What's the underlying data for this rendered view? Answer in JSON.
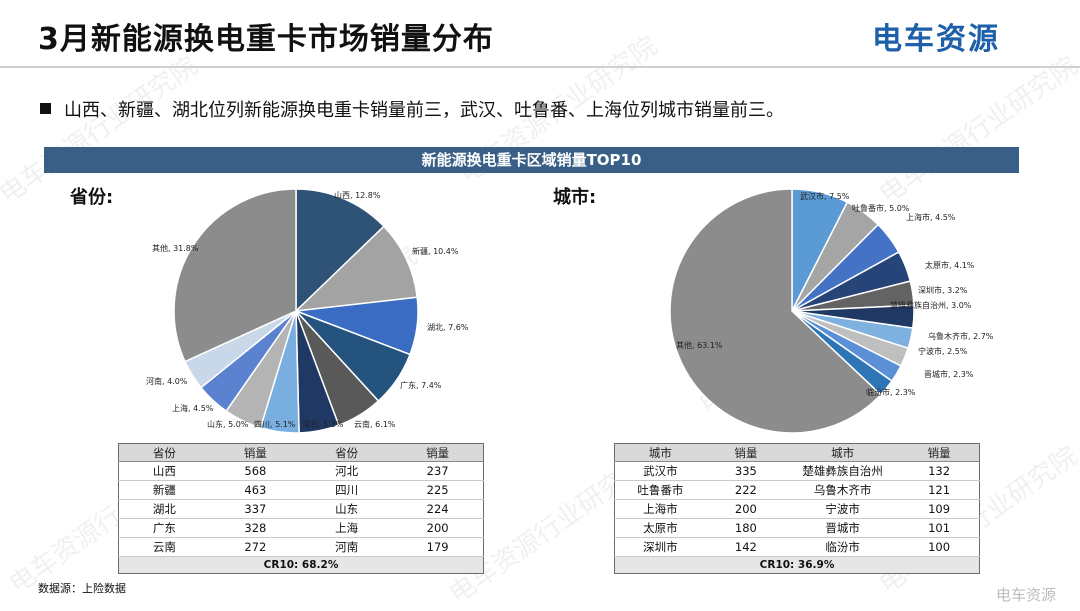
{
  "header": {
    "title": "3月新能源换电重卡市场销量分布",
    "logo": "电车资源"
  },
  "bullet": "山西、新疆、湖北位列新能源换电重卡销量前三，武汉、吐鲁番、上海位列城市销量前三。",
  "banner": "新能源换电重卡区域销量TOP10",
  "province_label": "省份:",
  "city_label": "城市:",
  "watermark": "电车资源行业研究院",
  "source": "数据源：上险数据",
  "corner_mark": "电车资源",
  "chart_data": [
    {
      "type": "pie",
      "slices": [
        {
          "label": "山西, 12.8%",
          "value": 12.8,
          "color": "#2f5277"
        },
        {
          "label": "新疆, 10.4%",
          "value": 10.4,
          "color": "#a3a3a3"
        },
        {
          "label": "湖北, 7.6%",
          "value": 7.6,
          "color": "#3a6cc4"
        },
        {
          "label": "广东, 7.4%",
          "value": 7.4,
          "color": "#24547e"
        },
        {
          "label": "云南, 6.1%",
          "value": 6.1,
          "color": "#595959"
        },
        {
          "label": "河北, 5.3%",
          "value": 5.3,
          "color": "#203864"
        },
        {
          "label": "四川, 5.1%",
          "value": 5.1,
          "color": "#79aee0"
        },
        {
          "label": "山东, 5.0%",
          "value": 5.0,
          "color": "#b4b4b4"
        },
        {
          "label": "上海, 4.5%",
          "value": 4.5,
          "color": "#5a82cf"
        },
        {
          "label": "河南, 4.0%",
          "value": 4.0,
          "color": "#c8d8e8"
        },
        {
          "label": "其他, 31.8%",
          "value": 31.8,
          "color": "#8c8c8c"
        }
      ]
    },
    {
      "type": "pie",
      "slices": [
        {
          "label": "武汉市, 7.5%",
          "value": 7.5,
          "color": "#5b9bd5"
        },
        {
          "label": "吐鲁番市, 5.0%",
          "value": 5.0,
          "color": "#a5a5a5"
        },
        {
          "label": "上海市, 4.5%",
          "value": 4.5,
          "color": "#4472c4"
        },
        {
          "label": "太原市, 4.1%",
          "value": 4.1,
          "color": "#264478"
        },
        {
          "label": "深圳市, 3.2%",
          "value": 3.2,
          "color": "#636363"
        },
        {
          "label": "楚雄彝族自治州, 3.0%",
          "value": 3.0,
          "color": "#203864"
        },
        {
          "label": "乌鲁木齐市, 2.7%",
          "value": 2.7,
          "color": "#7eb0e0"
        },
        {
          "label": "宁波市, 2.5%",
          "value": 2.5,
          "color": "#bfbfbf"
        },
        {
          "label": "晋城市, 2.3%",
          "value": 2.3,
          "color": "#5b8fd6"
        },
        {
          "label": "临汾市, 2.3%",
          "value": 2.3,
          "color": "#2e75b6"
        },
        {
          "label": "其他, 63.1%",
          "value": 63.1,
          "color": "#8c8c8c"
        }
      ]
    }
  ],
  "province_table": {
    "headers": [
      "省份",
      "销量",
      "省份",
      "销量"
    ],
    "rows": [
      [
        "山西",
        "568",
        "河北",
        "237"
      ],
      [
        "新疆",
        "463",
        "四川",
        "225"
      ],
      [
        "湖北",
        "337",
        "山东",
        "224"
      ],
      [
        "广东",
        "328",
        "上海",
        "200"
      ],
      [
        "云南",
        "272",
        "河南",
        "179"
      ]
    ],
    "cr": "CR10:  68.2%"
  },
  "city_table": {
    "headers": [
      "城市",
      "销量",
      "城市",
      "销量"
    ],
    "rows": [
      [
        "武汉市",
        "335",
        "楚雄彝族自治州",
        "132"
      ],
      [
        "吐鲁番市",
        "222",
        "乌鲁木齐市",
        "121"
      ],
      [
        "上海市",
        "200",
        "宁波市",
        "109"
      ],
      [
        "太原市",
        "180",
        "晋城市",
        "101"
      ],
      [
        "深圳市",
        "142",
        "临汾市",
        "100"
      ]
    ],
    "cr": "CR10:  36.9%"
  }
}
